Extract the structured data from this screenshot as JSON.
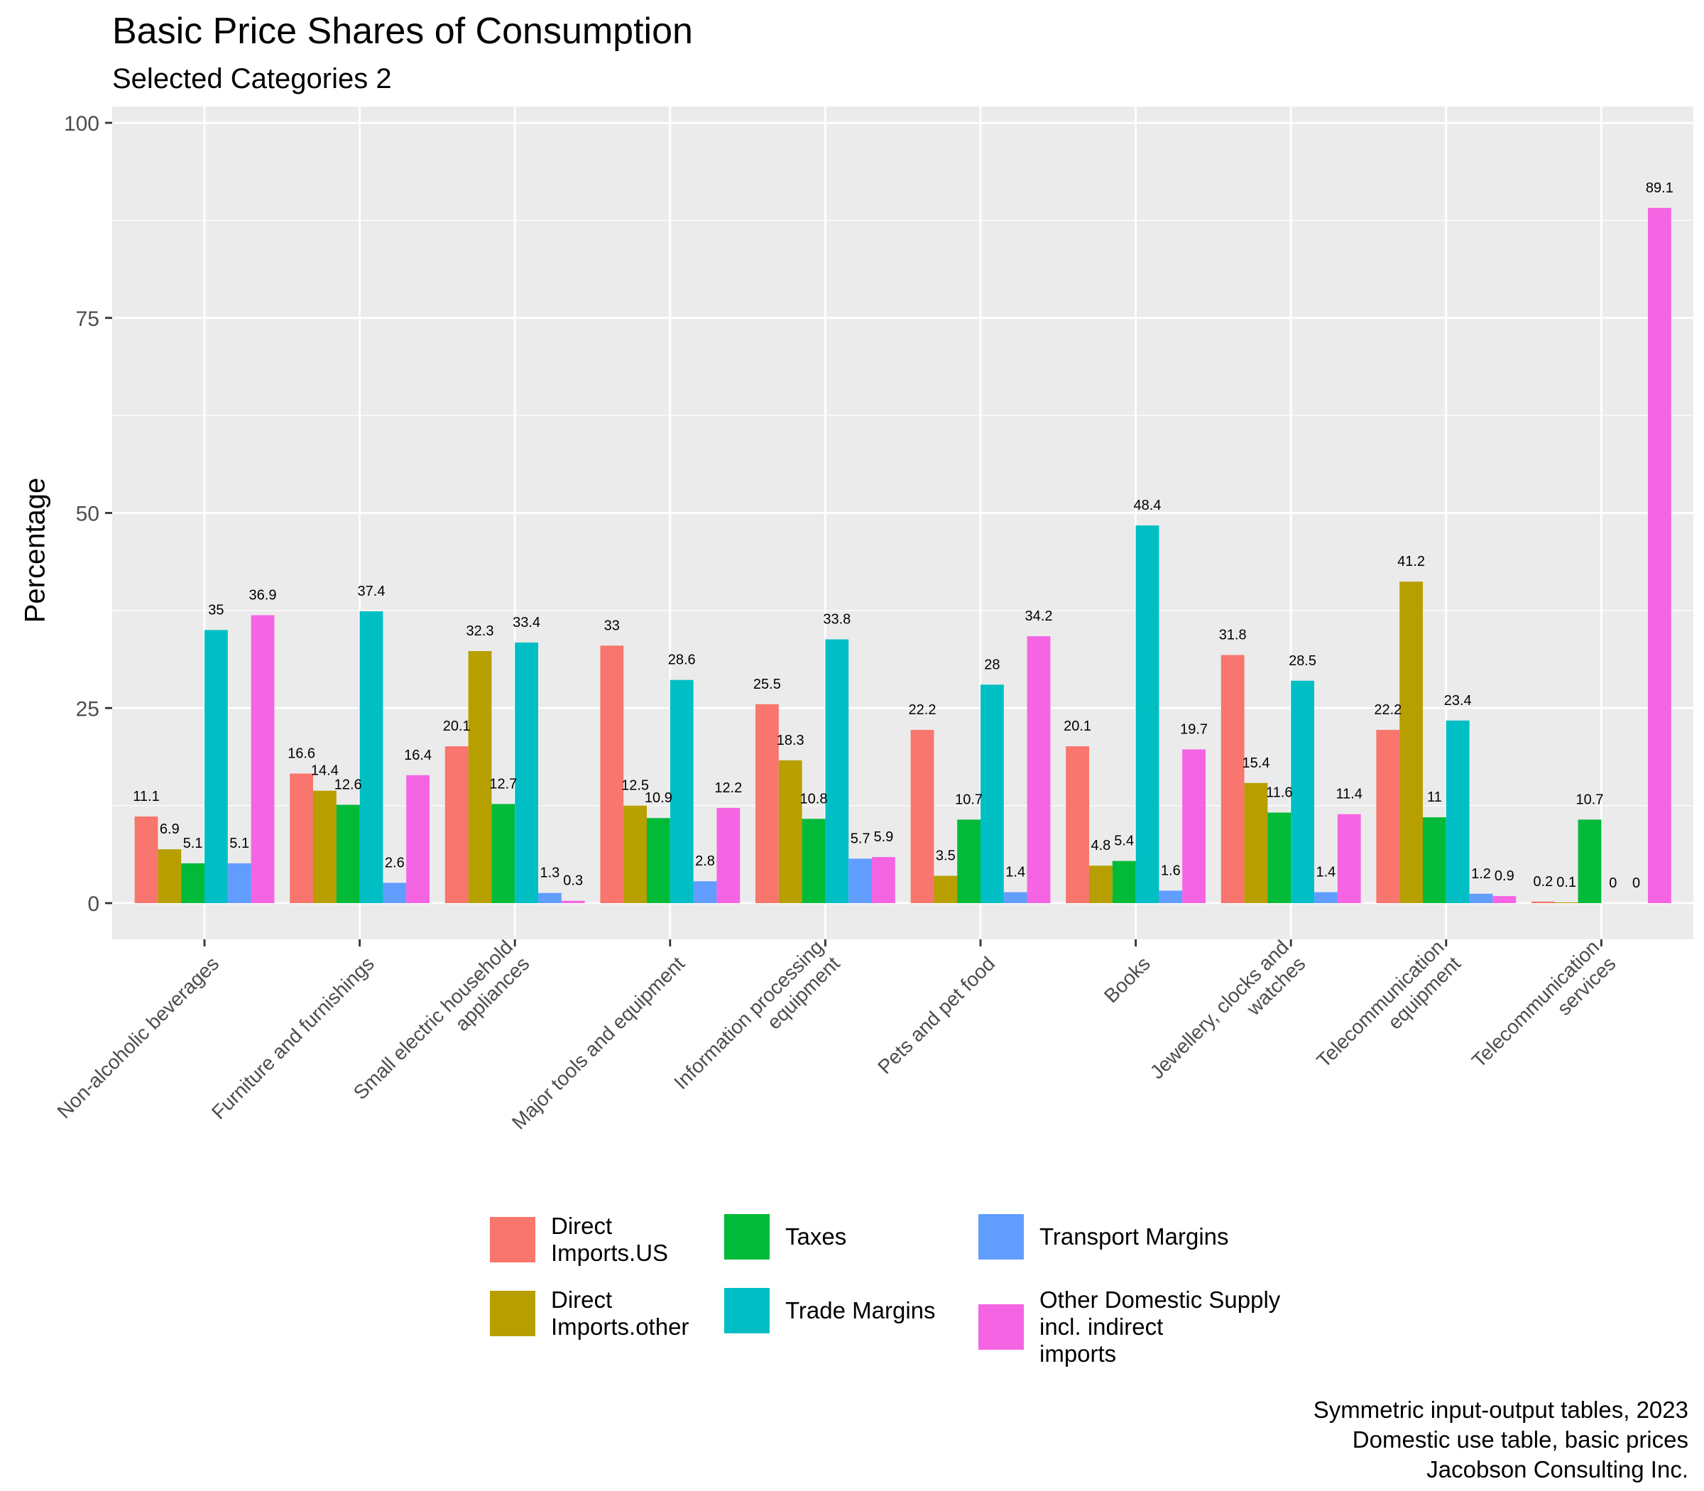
{
  "title": "Basic Price Shares of Consumption",
  "subtitle": "Selected Categories 2",
  "caption": [
    "Symmetric input-output tables, 2023",
    "Domestic use table, basic prices",
    "Jacobson Consulting Inc."
  ],
  "colors": {
    "panel": "#EBEBEB",
    "grid": "#FFFFFF",
    "axis_text": "#4D4D4D"
  },
  "chart_data": {
    "type": "bar",
    "title": "Basic Price Shares of Consumption",
    "subtitle": "Selected Categories 2",
    "xlabel": "",
    "ylabel": "Percentage",
    "ylim": [
      -5,
      100
    ],
    "yticks": [
      0,
      25,
      50,
      75,
      100
    ],
    "grid": true,
    "legend_position": "bottom",
    "categories": [
      "Non-alcoholic beverages",
      "Furniture and furnishings",
      "Small electric household appliances",
      "Major tools and equipment",
      "Information processing equipment",
      "Pets and pet food",
      "Books",
      "Jewellery, clocks and watches",
      "Telecommunication equipment",
      "Telecommunication services"
    ],
    "category_label_lines": [
      [
        "Non-alcoholic beverages"
      ],
      [
        "Furniture and furnishings"
      ],
      [
        "Small electric household",
        "appliances"
      ],
      [
        "Major tools and equipment"
      ],
      [
        "Information processing",
        "equipment"
      ],
      [
        "Pets and pet food"
      ],
      [
        "Books"
      ],
      [
        "Jewellery, clocks and",
        "watches"
      ],
      [
        "Telecommunication",
        "equipment"
      ],
      [
        "Telecommunication",
        "services"
      ]
    ],
    "series": [
      {
        "name": "Direct Imports.US",
        "legend_lines": [
          "Direct",
          "Imports.US"
        ],
        "color": "#F8766D",
        "values": [
          11.1,
          16.6,
          20.1,
          33,
          25.5,
          22.2,
          20.1,
          31.8,
          22.2,
          0.2
        ]
      },
      {
        "name": "Direct Imports.other",
        "legend_lines": [
          "Direct",
          "Imports.other"
        ],
        "color": "#B79F00",
        "values": [
          6.9,
          14.4,
          32.3,
          12.5,
          18.3,
          3.5,
          4.8,
          15.4,
          41.2,
          0.1
        ]
      },
      {
        "name": "Taxes",
        "legend_lines": [
          "Taxes"
        ],
        "color": "#00BA38",
        "values": [
          5.1,
          12.6,
          12.7,
          10.9,
          10.8,
          10.7,
          5.4,
          11.6,
          11,
          10.7
        ]
      },
      {
        "name": "Trade Margins",
        "legend_lines": [
          "Trade Margins"
        ],
        "color": "#00BFC4",
        "values": [
          35,
          37.4,
          33.4,
          28.6,
          33.8,
          28,
          48.4,
          28.5,
          23.4,
          0
        ]
      },
      {
        "name": "Transport Margins",
        "legend_lines": [
          "Transport Margins"
        ],
        "color": "#619CFF",
        "values": [
          5.1,
          2.6,
          1.3,
          2.8,
          5.7,
          1.4,
          1.6,
          1.4,
          1.2,
          0
        ]
      },
      {
        "name": "Other Domestic Supply incl. indirect imports",
        "legend_lines": [
          "Other Domestic Supply",
          "incl. indirect",
          "imports"
        ],
        "color": "#F564E3",
        "values": [
          36.9,
          16.4,
          0.3,
          12.2,
          5.9,
          34.2,
          19.7,
          11.4,
          0.9,
          89.1
        ]
      }
    ]
  }
}
